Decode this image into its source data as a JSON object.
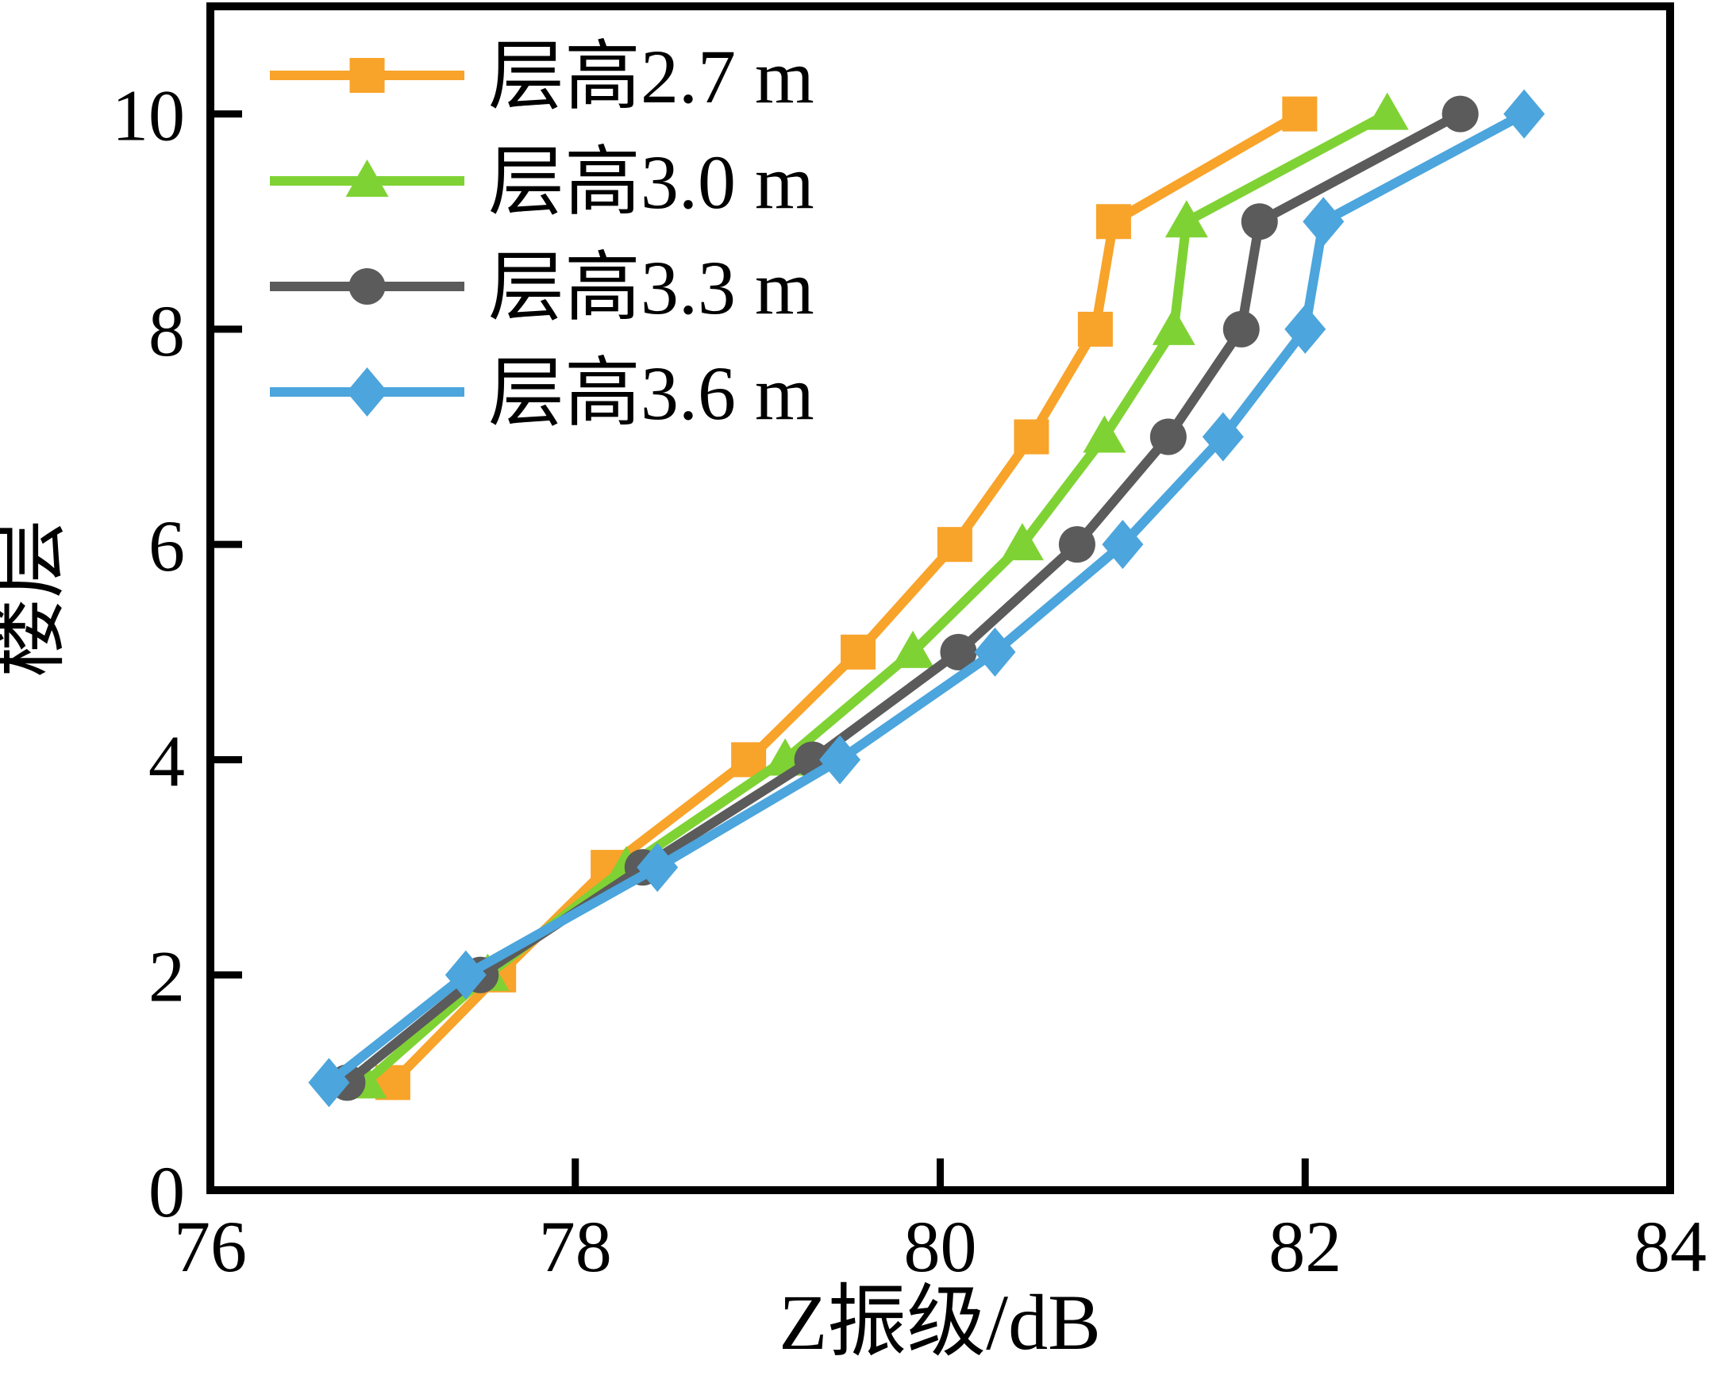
{
  "figure": {
    "background": "#ffffff",
    "axis_color": "#000000"
  },
  "chart_data": {
    "type": "line",
    "title": "",
    "xlabel": "Z振级/dB",
    "ylabel": "楼层",
    "xlim": [
      76,
      84
    ],
    "ylim": [
      0,
      11
    ],
    "x_ticks": [
      76,
      78,
      80,
      82,
      84
    ],
    "y_ticks": [
      0,
      2,
      4,
      6,
      8,
      10
    ],
    "grid": false,
    "legend_position": "top-left-inside",
    "categories_floors": [
      1,
      2,
      3,
      4,
      5,
      6,
      7,
      8,
      9,
      10
    ],
    "series": [
      {
        "name": "层高2.7 m",
        "marker": "square",
        "color": "#F8A32A",
        "values": [
          77.0,
          77.58,
          78.18,
          78.95,
          79.55,
          80.08,
          80.5,
          80.85,
          80.95,
          81.97
        ]
      },
      {
        "name": "层高3.0 m",
        "marker": "triangle",
        "color": "#7FD234",
        "values": [
          76.85,
          77.52,
          78.28,
          79.15,
          79.85,
          80.45,
          80.9,
          81.28,
          81.35,
          82.45
        ]
      },
      {
        "name": "层高3.3 m",
        "marker": "circle",
        "color": "#5B5B5B",
        "values": [
          76.75,
          77.48,
          78.37,
          79.3,
          80.1,
          80.75,
          81.25,
          81.65,
          81.75,
          82.85
        ]
      },
      {
        "name": "层高3.6 m",
        "marker": "diamond",
        "color": "#4CA5DC",
        "values": [
          76.65,
          77.4,
          78.45,
          79.45,
          80.3,
          81.0,
          81.55,
          82.0,
          82.1,
          83.2
        ]
      }
    ]
  }
}
